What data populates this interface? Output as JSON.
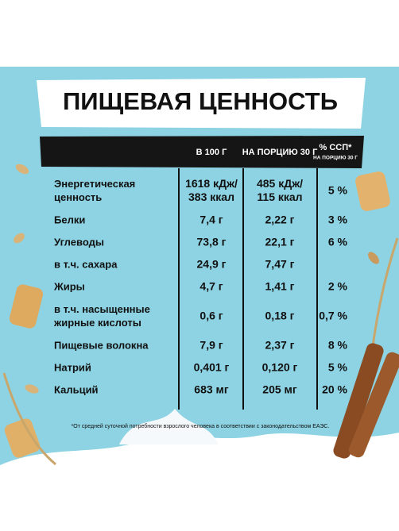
{
  "header": {
    "title": "ПИЩЕВАЯ ЦЕННОСТЬ"
  },
  "table": {
    "columns": {
      "per100": "В 100 Г",
      "portion": "НА ПОРЦИЮ 30 Г",
      "dv": "% ССП*",
      "dv_note": "НА ПОРЦИЮ 30 Г"
    },
    "rows": [
      {
        "label": [
          "Энергетическая",
          "ценность"
        ],
        "per100": [
          "1618 кДж/",
          "383 ккал"
        ],
        "portion": [
          "485 кДж/",
          "115 ккал"
        ],
        "dv": "5 %"
      },
      {
        "label": [
          "Белки"
        ],
        "per100": [
          "7,4 г"
        ],
        "portion": [
          "2,22 г"
        ],
        "dv": "3 %"
      },
      {
        "label": [
          "Углеводы"
        ],
        "per100": [
          "73,8 г"
        ],
        "portion": [
          "22,1 г"
        ],
        "dv": "6 %"
      },
      {
        "label": [
          "в т.ч. сахара"
        ],
        "per100": [
          "24,9 г"
        ],
        "portion": [
          "7,47 г"
        ]
      },
      {
        "label": [
          "Жиры"
        ],
        "per100": [
          "4,7 г"
        ],
        "portion": [
          "1,41 г"
        ],
        "dv": "2 %"
      },
      {
        "label": [
          "в т.ч. насыщенные",
          "жирные кислоты"
        ],
        "per100": [
          "0,6 г"
        ],
        "portion": [
          "0,18 г"
        ],
        "dv": "0,7 %"
      },
      {
        "label": [
          "Пищевые волокна"
        ],
        "per100": [
          "7,9 г"
        ],
        "portion": [
          "2,37 г"
        ],
        "dv": "8 %"
      },
      {
        "label": [
          "Натрий"
        ],
        "per100": [
          "0,401 г"
        ],
        "portion": [
          "0,120 г"
        ],
        "dv": "5 %"
      },
      {
        "label": [
          "Кальций"
        ],
        "per100": [
          "683 мг"
        ],
        "portion": [
          "205 мг"
        ],
        "dv": "20 %"
      }
    ],
    "footnote": "*От средней суточной потребности взрослого человека в соответствии с законодательством ЕАЭС."
  }
}
